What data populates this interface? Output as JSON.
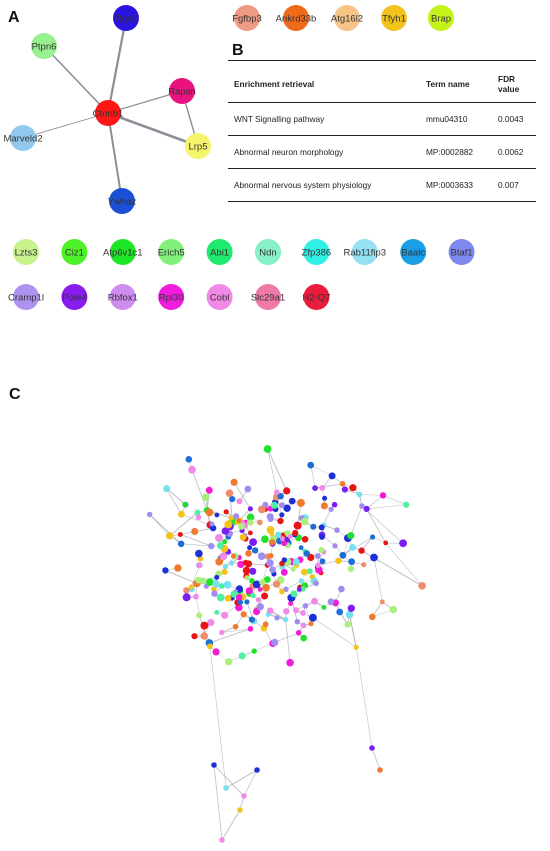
{
  "panels": {
    "a": "A",
    "b": "B",
    "c": "C"
  },
  "network_a": {
    "nodes": [
      {
        "id": "Rgs3",
        "label": "Rgs3",
        "color": "#2b14e0"
      },
      {
        "id": "Ptpn6",
        "label": "Ptpn6",
        "color": "#98f08f"
      },
      {
        "id": "Ctnnb1",
        "label": "Ctnnb1",
        "color": "#ff1616"
      },
      {
        "id": "Rapsn",
        "label": "Rapsn",
        "color": "#e8137f"
      },
      {
        "id": "Lrp5",
        "label": "Lrp5",
        "color": "#f5f56c"
      },
      {
        "id": "Marveld2",
        "label": "Marveld2",
        "color": "#93c8ee"
      },
      {
        "id": "Ywhaz",
        "label": "Ywhaz",
        "color": "#1b50d6"
      }
    ],
    "edges": [
      [
        "Rgs3",
        "Ctnnb1"
      ],
      [
        "Ptpn6",
        "Ctnnb1"
      ],
      [
        "Ctnnb1",
        "Rapsn"
      ],
      [
        "Ctnnb1",
        "Lrp5"
      ],
      [
        "Rapsn",
        "Lrp5"
      ],
      [
        "Marveld2",
        "Ctnnb1"
      ],
      [
        "Ywhaz",
        "Ctnnb1"
      ]
    ]
  },
  "unlinked_top": [
    {
      "label": "Fgfbp3",
      "color": "#ef9a83"
    },
    {
      "label": "Ankrd33b",
      "color": "#ef6b1a"
    },
    {
      "label": "Atg16l2",
      "color": "#f7c387"
    },
    {
      "label": "Tfyh1",
      "color": "#f2c31d"
    },
    {
      "label": "Brap",
      "color": "#c6f21b"
    }
  ],
  "unlinked_row1": [
    {
      "label": "Lzts3",
      "color": "#c6f18d"
    },
    {
      "label": "Ciz1",
      "color": "#4ef02a"
    },
    {
      "label": "Atp6v1c1",
      "color": "#1ce625"
    },
    {
      "label": "Erich5",
      "color": "#82f07a"
    },
    {
      "label": "Abi1",
      "color": "#1eeb6d"
    },
    {
      "label": "Ndn",
      "color": "#86f1c6"
    },
    {
      "label": "Zfp386",
      "color": "#2ff0e4"
    },
    {
      "label": "Rab11fip3",
      "color": "#94e1f3"
    },
    {
      "label": "Baalc",
      "color": "#1a9ee5"
    },
    {
      "label": "Btaf1",
      "color": "#7e88ee"
    }
  ],
  "unlinked_row2": [
    {
      "label": "Cramp1l",
      "color": "#ad92f0"
    },
    {
      "label": "Pole4",
      "color": "#8b1cf0"
    },
    {
      "label": "Rbfox1",
      "color": "#cf8cf0"
    },
    {
      "label": "Rpl30",
      "color": "#f01ddf"
    },
    {
      "label": "Cobl",
      "color": "#f08ae6"
    },
    {
      "label": "Slc29a1",
      "color": "#ef7aa8"
    },
    {
      "label": "H2-Q7",
      "color": "#ea1c3c"
    }
  ],
  "table_b": {
    "headers": [
      "Enrichment retrieval",
      "Term name",
      "FDR value"
    ],
    "rows": [
      [
        "WNT Signalling pathway",
        "mmu04310",
        "0.0043"
      ],
      [
        "Abnormal neuron morphology",
        "MP:0002882",
        "0.0062"
      ],
      [
        "Abnormal nervous system physiology",
        "MP:0003633",
        "0.007"
      ]
    ]
  },
  "network_c": {
    "palette": [
      "#22e02a",
      "#9f8cf0",
      "#1f2fd8",
      "#f21bd6",
      "#f28b6a",
      "#e81418",
      "#74e0f0",
      "#f5c21a",
      "#a9f07a",
      "#1e6ed6",
      "#f08ae8",
      "#4ef0a0",
      "#7b1ef0",
      "#f07a30"
    ]
  }
}
